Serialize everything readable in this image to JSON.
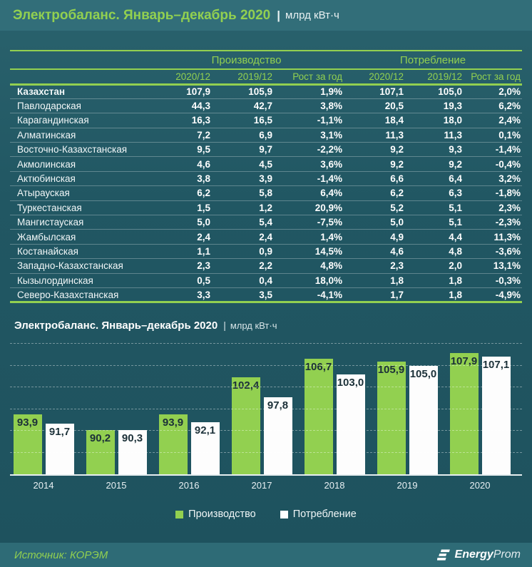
{
  "page": {
    "title_main": "Электробаланс. Январь–декабрь 2020",
    "title_sep": "|",
    "title_units": "млрд кВт·ч"
  },
  "table": {
    "group_headers": [
      "Производство",
      "Потребление"
    ],
    "col_headers": [
      "2020/12",
      "2019/12",
      "Рост за год",
      "2020/12",
      "2019/12",
      "Рост за год"
    ],
    "rows": [
      {
        "name": "Казахстан",
        "bold": true,
        "values": [
          "107,9",
          "105,9",
          "1,9%",
          "107,1",
          "105,0",
          "2,0%"
        ]
      },
      {
        "name": "Павлодарская",
        "values": [
          "44,3",
          "42,7",
          "3,8%",
          "20,5",
          "19,3",
          "6,2%"
        ]
      },
      {
        "name": "Карагандинская",
        "values": [
          "16,3",
          "16,5",
          "-1,1%",
          "18,4",
          "18,0",
          "2,4%"
        ]
      },
      {
        "name": "Алматинская",
        "values": [
          "7,2",
          "6,9",
          "3,1%",
          "11,3",
          "11,3",
          "0,1%"
        ]
      },
      {
        "name": "Восточно-Казахстанская",
        "values": [
          "9,5",
          "9,7",
          "-2,2%",
          "9,2",
          "9,3",
          "-1,4%"
        ]
      },
      {
        "name": "Акмолинская",
        "values": [
          "4,6",
          "4,5",
          "3,6%",
          "9,2",
          "9,2",
          "-0,4%"
        ]
      },
      {
        "name": "Актюбинская",
        "values": [
          "3,8",
          "3,9",
          "-1,4%",
          "6,6",
          "6,4",
          "3,2%"
        ]
      },
      {
        "name": "Атырауская",
        "values": [
          "6,2",
          "5,8",
          "6,4%",
          "6,2",
          "6,3",
          "-1,8%"
        ]
      },
      {
        "name": "Туркестанская",
        "values": [
          "1,5",
          "1,2",
          "20,9%",
          "5,2",
          "5,1",
          "2,3%"
        ]
      },
      {
        "name": "Мангистауская",
        "values": [
          "5,0",
          "5,4",
          "-7,5%",
          "5,0",
          "5,1",
          "-2,3%"
        ]
      },
      {
        "name": "Жамбылская",
        "values": [
          "2,4",
          "2,4",
          "1,4%",
          "4,9",
          "4,4",
          "11,3%"
        ]
      },
      {
        "name": "Костанайская",
        "values": [
          "1,1",
          "0,9",
          "14,5%",
          "4,6",
          "4,8",
          "-3,6%"
        ]
      },
      {
        "name": "Западно-Казахстанская",
        "values": [
          "2,3",
          "2,2",
          "4,8%",
          "2,3",
          "2,0",
          "13,1%"
        ]
      },
      {
        "name": "Кызылординская",
        "values": [
          "0,5",
          "0,4",
          "18,0%",
          "1,8",
          "1,8",
          "-0,3%"
        ]
      },
      {
        "name": "Северо-Казахстанская",
        "values": [
          "3,3",
          "3,5",
          "-4,1%",
          "1,7",
          "1,8",
          "-4,9%"
        ]
      }
    ]
  },
  "chart": {
    "title_main": "Электробаланс. Январь–декабрь 2020",
    "title_sep": "|",
    "title_units": "млрд кВт·ч"
  },
  "chart_data": {
    "type": "bar",
    "title": "Электробаланс. Январь–декабрь 2020 | млрд кВт·ч",
    "categories": [
      "2014",
      "2015",
      "2016",
      "2017",
      "2018",
      "2019",
      "2020"
    ],
    "series": [
      {
        "name": "Производство",
        "color": "#92d050",
        "values": [
          93.9,
          90.2,
          93.9,
          102.4,
          106.7,
          105.9,
          107.9
        ]
      },
      {
        "name": "Потребление",
        "color": "#ffffff",
        "values": [
          91.7,
          90.3,
          92.1,
          97.8,
          103.0,
          105.0,
          107.1
        ]
      }
    ],
    "xlabel": "",
    "ylabel": "",
    "ylim": [
      80,
      110
    ],
    "gridline_step": 5,
    "grid": true,
    "legend_position": "bottom",
    "data_labels": true
  },
  "legend": [
    {
      "label": "Производство",
      "color": "#92d050"
    },
    {
      "label": "Потребление",
      "color": "#ffffff"
    }
  ],
  "footer": {
    "source": "Источник: КОРЭМ",
    "logo_bold": "Energy",
    "logo_light": "Prom"
  },
  "colors": {
    "accent_green": "#92d050",
    "background_dark": "#1e525e",
    "band_light": "#326e79",
    "bar_label_text": "#1b3038"
  }
}
